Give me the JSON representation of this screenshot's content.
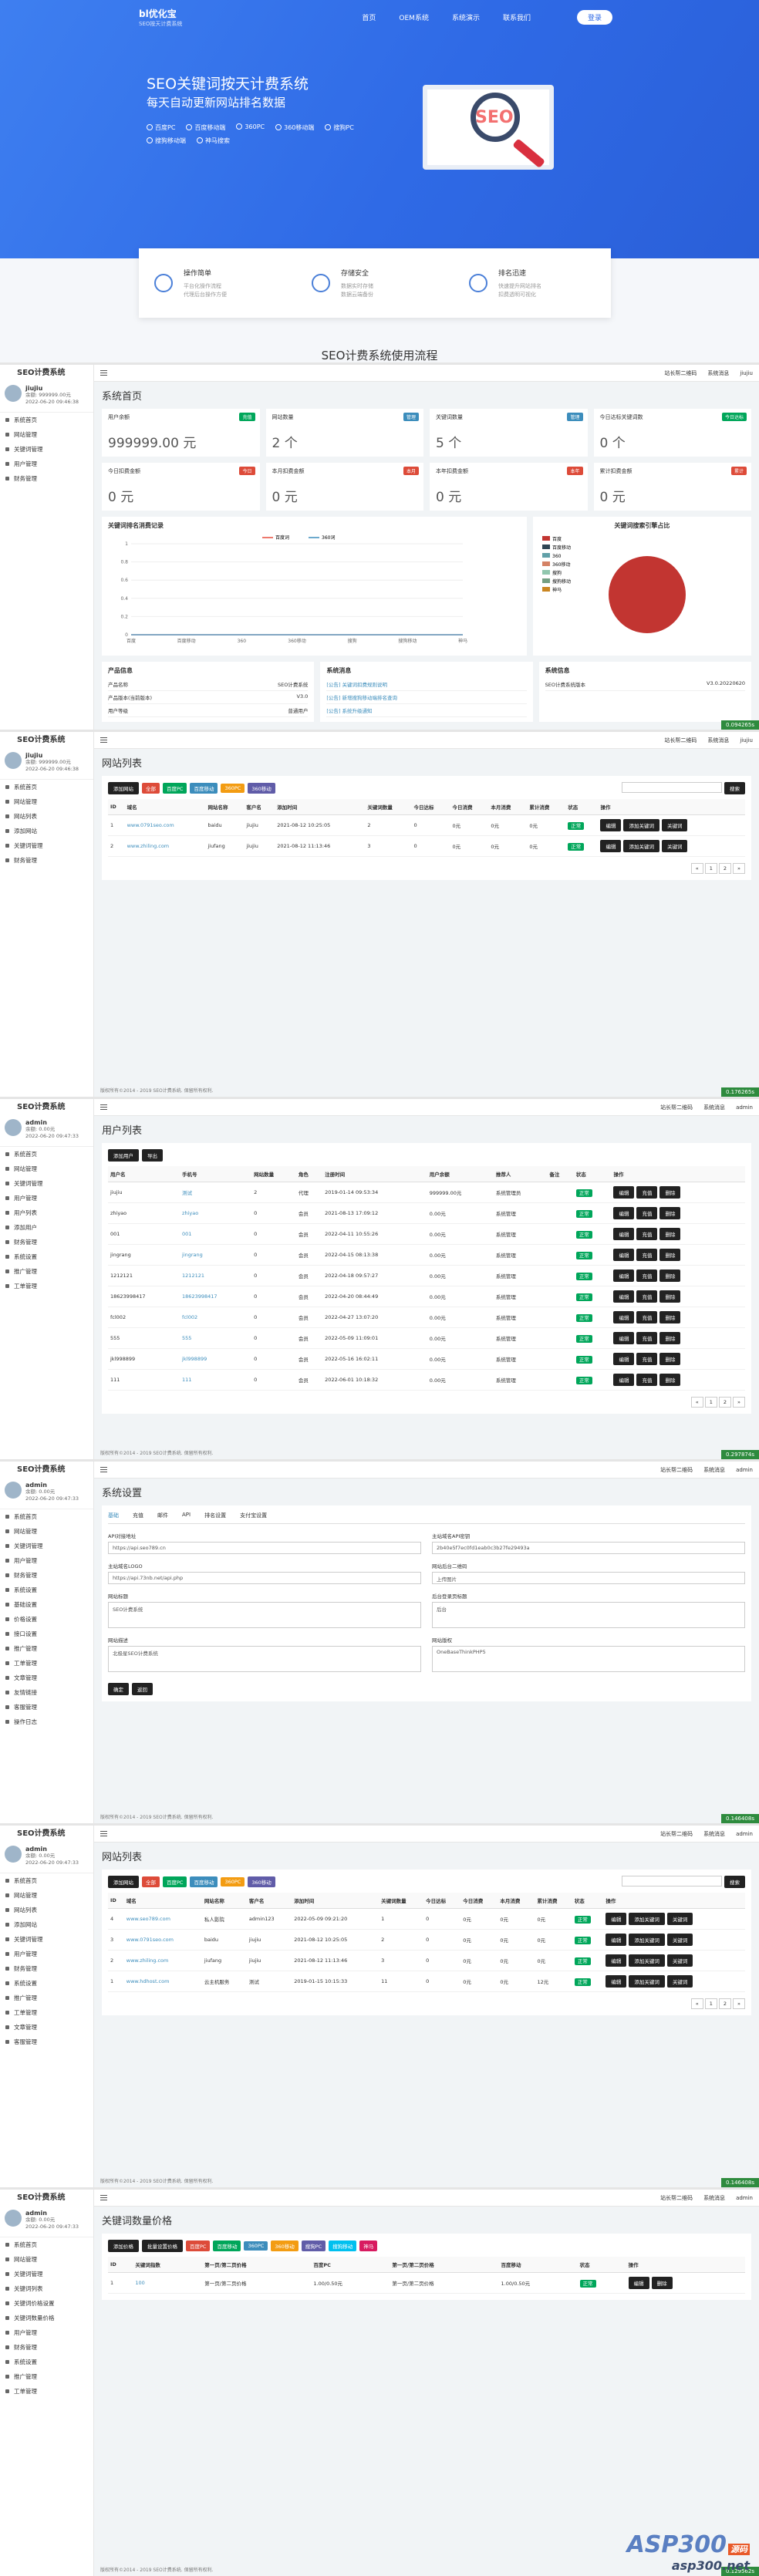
{
  "landing": {
    "logo": "bl优化宝",
    "logo_sub": "SEO按天计费系统",
    "nav": [
      "首页",
      "OEM系统",
      "系统演示",
      "联系我们"
    ],
    "login": "登录",
    "title": "SEO关键词按天计费系统",
    "subtitle": "每天自动更新网站排名数据",
    "features": [
      "百度PC",
      "百度移动端",
      "360PC",
      "360移动端",
      "搜狗PC",
      "搜狗移动端",
      "神马搜索"
    ],
    "screen_text": "SEO",
    "cards": [
      {
        "title": "操作简单",
        "lines": [
          "平台化操作流程",
          "代理后台操作方便"
        ]
      },
      {
        "title": "存储安全",
        "lines": [
          "数据实时存储",
          "数据云端备份"
        ]
      },
      {
        "title": "排名迅速",
        "lines": [
          "快速提升网站排名",
          "扣费透明可视化"
        ]
      }
    ],
    "flow_title": "SEO计费系统使用流程"
  },
  "chart_data": [
    {
      "type": "line",
      "title": "关键词排名消费记录",
      "categories": [
        "百度",
        "百度移动",
        "360",
        "360移动",
        "搜狗",
        "搜狗移动",
        "神马"
      ],
      "series": [
        {
          "name": "百度词",
          "color": "#e74c3c",
          "values": [
            0,
            0,
            0,
            0,
            0,
            0,
            0
          ]
        },
        {
          "name": "360词",
          "color": "#3c8dbc",
          "values": [
            0,
            0,
            0,
            0,
            0,
            0,
            0
          ]
        }
      ],
      "ylim": [
        0,
        1
      ],
      "yticks": [
        0,
        0.2,
        0.4,
        0.6,
        0.8,
        1
      ],
      "grid": true
    },
    {
      "type": "pie",
      "title": "关键词搜索引擎占比",
      "categories": [
        "百度",
        "百度移动",
        "360",
        "360移动",
        "搜狗",
        "搜狗移动",
        "神马"
      ],
      "colors": [
        "#c23531",
        "#2f4554",
        "#61a0a8",
        "#d48265",
        "#91c7ae",
        "#749f83",
        "#ca8622"
      ],
      "values": [
        5,
        0,
        0,
        0,
        0,
        0,
        0
      ]
    }
  ],
  "screens": [
    {
      "brand": "SEO计费系统",
      "user": "jiujiu",
      "balance": "余额: 999999.00元",
      "login_time": "2022-06-20 09:46:38",
      "menu": [
        "系统首页",
        "网站管理",
        "关键词管理",
        "用户管理",
        "财务管理"
      ],
      "top": [
        "站长帮二维码",
        "系统消息",
        "jiujiu"
      ],
      "title": "系统首页",
      "runtime": "0.094265s",
      "stats": [
        {
          "label": "用户余额",
          "tag": "充值",
          "color": "#00a65a",
          "value": "999999.00 元"
        },
        {
          "label": "网站数量",
          "tag": "管理",
          "color": "#3c8dbc",
          "value": "2 个"
        },
        {
          "label": "关键词数量",
          "tag": "管理",
          "color": "#3c8dbc",
          "value": "5 个"
        },
        {
          "label": "今日达标关键词数",
          "tag": "今日达标",
          "color": "#00a65a",
          "value": "0 个"
        },
        {
          "label": "今日扣费金额",
          "tag": "今日",
          "color": "#dd4b39",
          "value": "0 元"
        },
        {
          "label": "本月扣费金额",
          "tag": "本月",
          "color": "#dd4b39",
          "value": "0 元"
        },
        {
          "label": "本年扣费金额",
          "tag": "本年",
          "color": "#dd4b39",
          "value": "0 元"
        },
        {
          "label": "累计扣费金额",
          "tag": "累计",
          "color": "#dd4b39",
          "value": "0 元"
        }
      ],
      "info": [
        {
          "title": "产品信息",
          "rows": [
            [
              "产品名称",
              "SEO计费系统"
            ],
            [
              "产品版本(当前版本)",
              "V3.0"
            ],
            [
              "用户等级",
              "普通用户"
            ]
          ]
        },
        {
          "title": "系统消息",
          "rows": [
            [
              "[公告] 关键词扣费规则说明"
            ],
            [
              "[公告] 新增搜狗移动端排名查询"
            ],
            [
              "[公告] 系统升级通知"
            ]
          ]
        },
        {
          "title": "系统信息",
          "rows": [
            [
              "SEO计费系统版本",
              "V3.0.20220620"
            ]
          ]
        }
      ]
    },
    {
      "brand": "SEO计费系统",
      "user": "jiujiu",
      "balance": "余额: 999999.00元",
      "login_time": "2022-06-20 09:46:38",
      "menu": [
        "系统首页",
        "网站管理",
        "网站列表",
        "添加网站",
        "关键词管理",
        "财务管理"
      ],
      "top": [
        "站长帮二维码",
        "系统消息",
        "jiujiu"
      ],
      "title": "网站列表",
      "runtime": "0.176265s",
      "footer": "版权所有©2014 - 2019 SEO计费系统. 保留所有权利.",
      "table": {
        "toolbar": [
          "添加网站"
        ],
        "filters": [
          "全部",
          "百度PC",
          "百度移动",
          "360PC",
          "360移动"
        ],
        "search": "搜索",
        "columns": [
          "ID",
          "域名",
          "网站名称",
          "客户名",
          "添加时间",
          "关键词数量",
          "今日达标",
          "今日消费",
          "本月消费",
          "累计消费",
          "状态",
          "操作"
        ],
        "rows": [
          [
            "1",
            "www.0791seo.com",
            "baidu",
            "jiujiu",
            "2021-08-12 10:25:05",
            "2",
            "0",
            "0元",
            "0元",
            "0元",
            "正常"
          ],
          [
            "2",
            "www.zhiling.com",
            "jiufang",
            "jiujiu",
            "2021-08-12 11:13:46",
            "3",
            "0",
            "0元",
            "0元",
            "0元",
            "正常"
          ]
        ],
        "actions": [
          "编辑",
          "添加关键词",
          "关键词"
        ],
        "pager": [
          "«",
          "1",
          "2",
          "»"
        ]
      }
    },
    {
      "brand": "SEO计费系统",
      "user": "admin",
      "balance": "余额: 0.00元",
      "login_time": "2022-06-20 09:47:33",
      "menu": [
        "系统首页",
        "网站管理",
        "关键词管理",
        "用户管理",
        "用户列表",
        "添加用户",
        "财务管理",
        "系统设置",
        "推广管理",
        "工单管理"
      ],
      "top": [
        "站长帮二维码",
        "系统消息",
        "admin"
      ],
      "title": "用户列表",
      "runtime": "0.297874s",
      "footer": "版权所有©2014 - 2019 SEO计费系统. 保留所有权利.",
      "table": {
        "toolbar": [
          "添加用户",
          "导出"
        ],
        "columns": [
          "用户名",
          "手机号",
          "网站数量",
          "角色",
          "注册时间",
          "用户余额",
          "推荐人",
          "备注",
          "状态",
          "操作"
        ],
        "rows": [
          [
            "jiujiu",
            "测试",
            "2",
            "代理",
            "2019-01-14 09:53:34",
            "999999.00元",
            "系统管理员",
            "",
            "正常"
          ],
          [
            "zhiyao",
            "zhiyao",
            "0",
            "会员",
            "2021-08-13 17:09:12",
            "0.00元",
            "系统管理",
            "",
            "正常"
          ],
          [
            "001",
            "001",
            "0",
            "会员",
            "2022-04-11 10:55:26",
            "0.00元",
            "系统管理",
            "",
            "正常"
          ],
          [
            "jingrang",
            "jingrang",
            "0",
            "会员",
            "2022-04-15 08:13:38",
            "0.00元",
            "系统管理",
            "",
            "正常"
          ],
          [
            "1212121",
            "1212121",
            "0",
            "会员",
            "2022-04-18 09:57:27",
            "0.00元",
            "系统管理",
            "",
            "正常"
          ],
          [
            "18623998417",
            "18623998417",
            "0",
            "会员",
            "2022-04-20 08:44:49",
            "0.00元",
            "系统管理",
            "",
            "正常"
          ],
          [
            "fcl002",
            "fcl002",
            "0",
            "会员",
            "2022-04-27 13:07:20",
            "0.00元",
            "系统管理",
            "",
            "正常"
          ],
          [
            "555",
            "555",
            "0",
            "会员",
            "2022-05-09 11:09:01",
            "0.00元",
            "系统管理",
            "",
            "正常"
          ],
          [
            "jkl998899",
            "jkl998899",
            "0",
            "会员",
            "2022-05-16 16:02:11",
            "0.00元",
            "系统管理",
            "",
            "正常"
          ],
          [
            "111",
            "111",
            "0",
            "会员",
            "2022-06-01 10:18:32",
            "0.00元",
            "系统管理",
            "",
            "正常"
          ]
        ],
        "actions": [
          "编辑",
          "充值",
          "删除"
        ],
        "pager": [
          "«",
          "1",
          "2",
          "»"
        ]
      }
    },
    {
      "brand": "SEO计费系统",
      "user": "admin",
      "balance": "余额: 0.00元",
      "login_time": "2022-06-20 09:47:33",
      "menu": [
        "系统首页",
        "网站管理",
        "关键词管理",
        "用户管理",
        "财务管理",
        "系统设置",
        "基础设置",
        "价格设置",
        "接口设置",
        "推广管理",
        "工单管理",
        "文章管理",
        "友情链接",
        "客服管理",
        "操作日志"
      ],
      "top": [
        "站长帮二维码",
        "系统消息",
        "admin"
      ],
      "title": "系统设置",
      "runtime": "0.146408s",
      "footer": "版权所有©2014 - 2019 SEO计费系统. 保留所有权利.",
      "form": {
        "tabs": [
          "基础",
          "充值",
          "邮件",
          "API",
          "排名设置",
          "支付宝设置"
        ],
        "fields": [
          {
            "label": "API对接地址",
            "value": "https://api.seo789.cn"
          },
          {
            "label": "主站域名API密钥",
            "value": "2b40e5f7ec0fd1eab0c3b27fe29493a"
          },
          {
            "label": "主站域名LOGO",
            "value": "https://api.73nb.net/api.php"
          },
          {
            "label": "网站后台二维码",
            "value": "上传图片"
          },
          {
            "label": "网站标题",
            "value": "SEO计费系统"
          },
          {
            "label": "后台登录页标题",
            "value": "后台"
          },
          {
            "label": "网站描述",
            "value": "北极星SEO计费系统"
          },
          {
            "label": "网站版权",
            "value": "OneBaseThinkPHP5"
          }
        ],
        "buttons": [
          "确定",
          "返回"
        ]
      }
    },
    {
      "brand": "SEO计费系统",
      "user": "admin",
      "balance": "余额: 0.00元",
      "login_time": "2022-06-20 09:47:33",
      "menu": [
        "系统首页",
        "网站管理",
        "网站列表",
        "添加网站",
        "关键词管理",
        "用户管理",
        "财务管理",
        "系统设置",
        "推广管理",
        "工单管理",
        "文章管理",
        "客服管理"
      ],
      "top": [
        "站长帮二维码",
        "系统消息",
        "admin"
      ],
      "title": "网站列表",
      "runtime": "0.146408s",
      "footer": "版权所有©2014 - 2019 SEO计费系统. 保留所有权利.",
      "table": {
        "toolbar": [
          "添加网站"
        ],
        "filters": [
          "全部",
          "百度PC",
          "百度移动",
          "360PC",
          "360移动"
        ],
        "search": "搜索",
        "columns": [
          "ID",
          "域名",
          "网站名称",
          "客户名",
          "添加时间",
          "关键词数量",
          "今日达标",
          "今日消费",
          "本月消费",
          "累计消费",
          "状态",
          "操作"
        ],
        "rows": [
          [
            "4",
            "www.seo789.com",
            "私人影院",
            "admin123",
            "2022-05-09 09:21:20",
            "1",
            "0",
            "0元",
            "0元",
            "0元",
            "正常"
          ],
          [
            "3",
            "www.0791seo.com",
            "baidu",
            "jiujiu",
            "2021-08-12 10:25:05",
            "2",
            "0",
            "0元",
            "0元",
            "0元",
            "正常"
          ],
          [
            "2",
            "www.zhiling.com",
            "jiufang",
            "jiujiu",
            "2021-08-12 11:13:46",
            "3",
            "0",
            "0元",
            "0元",
            "0元",
            "正常"
          ],
          [
            "1",
            "www.hdhost.com",
            "云主机服务",
            "测试",
            "2019-01-15 10:15:33",
            "11",
            "0",
            "0元",
            "0元",
            "12元",
            "正常"
          ]
        ],
        "actions": [
          "编辑",
          "添加关键词",
          "关键词"
        ],
        "pager": [
          "«",
          "1",
          "2",
          "»"
        ]
      }
    },
    {
      "brand": "SEO计费系统",
      "user": "admin",
      "balance": "余额: 0.00元",
      "login_time": "2022-06-20 09:47:33",
      "menu": [
        "系统首页",
        "网站管理",
        "关键词管理",
        "关键词列表",
        "关键词价格设置",
        "关键词数量价格",
        "用户管理",
        "财务管理",
        "系统设置",
        "推广管理",
        "工单管理"
      ],
      "top": [
        "站长帮二维码",
        "系统消息",
        "admin"
      ],
      "title": "关键词数量价格",
      "runtime": "0.129562s",
      "footer": "版权所有©2014 - 2019 SEO计费系统. 保留所有权利.",
      "table": {
        "toolbar": [
          "添加价格",
          "批量设置价格"
        ],
        "filters": [
          "百度PC",
          "百度移动",
          "360PC",
          "360移动",
          "搜狗PC",
          "搜狗移动",
          "神马"
        ],
        "columns": [
          "ID",
          "关键词指数",
          "第一页/第二页价格",
          "百度PC",
          "第一页/第二页价格",
          "百度移动",
          "状态",
          "操作"
        ],
        "rows": [
          [
            "1",
            "100",
            "第一页/第二页价格",
            "1.00/0.50元",
            "第一页/第二页价格",
            "1.00/0.50元",
            "正常"
          ]
        ],
        "actions": [
          "编辑",
          "删除"
        ]
      }
    }
  ],
  "watermark": [
    "ASP300",
    "源码",
    "asp300.net"
  ]
}
